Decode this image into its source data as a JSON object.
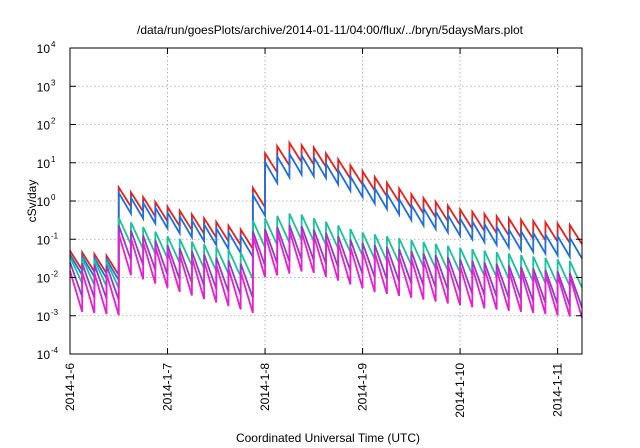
{
  "chart_data": {
    "type": "line",
    "title": "/data/run/goesPlots/archive/2014-01-11/04:00/flux/../bryn/5daysMars.plot",
    "xlabel": "Coordinated Universal Time (UTC)",
    "ylabel": "cSv/day",
    "yscale": "log",
    "ylim": [
      0.0001,
      10000
    ],
    "xlim": [
      "2014-01-06",
      "2014-01-11 06:00"
    ],
    "grid": true,
    "legend": "none",
    "x_ticks": [
      "2014-1-6",
      "2014-1-7",
      "2014-1-8",
      "2014-1-9",
      "2014-1-10",
      "2014-1-11"
    ],
    "y_ticks": [
      {
        "base": "10",
        "exp": "-4",
        "value": 0.0001
      },
      {
        "base": "10",
        "exp": "-3",
        "value": 0.001
      },
      {
        "base": "10",
        "exp": "-2",
        "value": 0.01
      },
      {
        "base": "10",
        "exp": "-1",
        "value": 0.1
      },
      {
        "base": "10",
        "exp": "0",
        "value": 1
      },
      {
        "base": "10",
        "exp": "1",
        "value": 10
      },
      {
        "base": "10",
        "exp": "2",
        "value": 100
      },
      {
        "base": "10",
        "exp": "3",
        "value": 1000
      },
      {
        "base": "10",
        "exp": "4",
        "value": 10000
      }
    ],
    "sawtooth_period_hours": 3,
    "series": [
      {
        "color": "#e8201c",
        "peaks": [
          [
            0.0,
            0.05
          ],
          [
            0.45,
            0.035
          ],
          [
            0.46,
            2.5
          ],
          [
            1.0,
            0.7
          ],
          [
            1.85,
            0.15
          ],
          [
            1.86,
            1.5
          ],
          [
            1.95,
            15
          ],
          [
            2.2,
            35
          ],
          [
            2.5,
            25
          ],
          [
            3.0,
            6
          ],
          [
            3.5,
            1.5
          ],
          [
            4.0,
            0.6
          ],
          [
            4.5,
            0.35
          ],
          [
            5.25,
            0.22
          ]
        ],
        "drop": 3.2
      },
      {
        "color": "#1f6fdb",
        "peaks": [
          [
            0.0,
            0.04
          ],
          [
            0.45,
            0.028
          ],
          [
            0.46,
            1.8
          ],
          [
            1.0,
            0.5
          ],
          [
            1.85,
            0.1
          ],
          [
            1.86,
            1.0
          ],
          [
            1.95,
            9
          ],
          [
            2.2,
            18
          ],
          [
            2.5,
            14
          ],
          [
            3.0,
            3
          ],
          [
            3.5,
            0.8
          ],
          [
            4.0,
            0.35
          ],
          [
            4.5,
            0.18
          ],
          [
            5.25,
            0.1
          ]
        ],
        "drop": 3.5
      },
      {
        "color": "#19c29a",
        "peaks": [
          [
            0.0,
            0.035
          ],
          [
            0.45,
            0.025
          ],
          [
            0.46,
            0.4
          ],
          [
            1.0,
            0.12
          ],
          [
            1.85,
            0.04
          ],
          [
            1.86,
            0.3
          ],
          [
            2.3,
            0.5
          ],
          [
            3.0,
            0.15
          ],
          [
            4.0,
            0.06
          ],
          [
            5.25,
            0.025
          ]
        ],
        "drop": 5.0
      },
      {
        "color": "#8a3fc4",
        "peaks": [
          [
            0.0,
            0.025
          ],
          [
            0.45,
            0.02
          ],
          [
            0.46,
            0.25
          ],
          [
            1.0,
            0.07
          ],
          [
            1.85,
            0.02
          ],
          [
            1.86,
            0.16
          ],
          [
            2.3,
            0.25
          ],
          [
            3.0,
            0.08
          ],
          [
            4.0,
            0.03
          ],
          [
            5.25,
            0.012
          ]
        ],
        "drop": 8.0
      },
      {
        "color": "#e81ed0",
        "peaks": [
          [
            0.0,
            0.015
          ],
          [
            0.45,
            0.012
          ],
          [
            0.46,
            0.15
          ],
          [
            1.0,
            0.05
          ],
          [
            1.85,
            0.012
          ],
          [
            1.86,
            0.12
          ],
          [
            2.3,
            0.18
          ],
          [
            3.0,
            0.05
          ],
          [
            4.0,
            0.02
          ],
          [
            5.25,
            0.01
          ]
        ],
        "drop": 12.0
      }
    ]
  }
}
